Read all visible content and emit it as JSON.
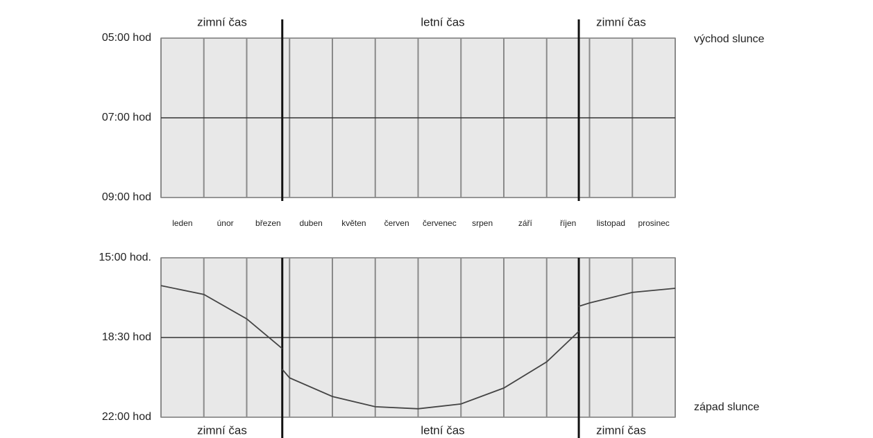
{
  "chart_data": [
    {
      "type": "grid",
      "annotations": [
        "zimní čas",
        "letní čas",
        "zimní čas"
      ],
      "right_label": "východ slunce",
      "categories": [
        "leden",
        "únor",
        "březen",
        "duben",
        "květen",
        "červen",
        "červenec",
        "srpen",
        "září",
        "říjen",
        "listopad",
        "prosinec"
      ],
      "xlim": [
        0,
        12
      ],
      "xticks": [
        0,
        1,
        2,
        3,
        4,
        5,
        6,
        7,
        8,
        9,
        10,
        11,
        12
      ],
      "dst_lines": [
        2.83,
        9.75
      ],
      "ylim": [
        5,
        9
      ],
      "inverted": true,
      "yticks": [
        {
          "value": 5,
          "label": "05:00 hod"
        },
        {
          "value": 7,
          "label": "07:00 hod"
        },
        {
          "value": 9,
          "label": "09:00 hod"
        }
      ],
      "grid": true
    },
    {
      "type": "line",
      "annotations": [
        "zimní čas",
        "letní čas",
        "zimní čas"
      ],
      "right_label": "západ slunce",
      "xlim": [
        0,
        12
      ],
      "xticks": [
        0,
        1,
        2,
        3,
        4,
        5,
        6,
        7,
        8,
        9,
        10,
        11,
        12
      ],
      "dst_lines": [
        2.83,
        9.75
      ],
      "ylim": [
        15,
        22
      ],
      "inverted": true,
      "yticks": [
        {
          "value": 15,
          "label": "15:00 hod."
        },
        {
          "value": 18.5,
          "label": "18:30 hod"
        },
        {
          "value": 22,
          "label": "22:00 hod"
        }
      ],
      "grid": true,
      "series": [
        {
          "color": "#444444",
          "x": [
            0,
            1,
            2,
            2.83,
            2.83,
            2.83,
            3,
            4,
            5,
            6,
            7,
            8,
            9,
            9.75,
            9.75,
            9.75,
            10,
            11,
            12
          ],
          "values": [
            16.22,
            16.61,
            17.68,
            18.99,
            null,
            19.9,
            20.27,
            21.09,
            21.54,
            21.63,
            21.42,
            20.72,
            19.57,
            18.23,
            null,
            17.13,
            16.98,
            16.52,
            16.34
          ]
        }
      ]
    }
  ]
}
